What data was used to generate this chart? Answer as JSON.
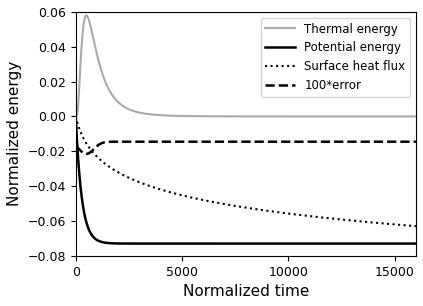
{
  "title": "",
  "xlabel": "Normalized time",
  "ylabel": "Normalized energy",
  "xlim": [
    0,
    16000
  ],
  "ylim": [
    -0.08,
    0.06
  ],
  "yticks": [
    -0.08,
    -0.06,
    -0.04,
    -0.02,
    0.0,
    0.02,
    0.04,
    0.06
  ],
  "xticks": [
    0,
    5000,
    10000,
    15000
  ],
  "legend": [
    "Thermal energy",
    "Potential energy",
    "Surface heat flux",
    "100*error"
  ],
  "thermal_color": "#aaaaaa",
  "potential_color": "#000000",
  "flux_color": "#000000",
  "error_color": "#000000",
  "figsize": [
    4.23,
    3.06
  ],
  "dpi": 100
}
